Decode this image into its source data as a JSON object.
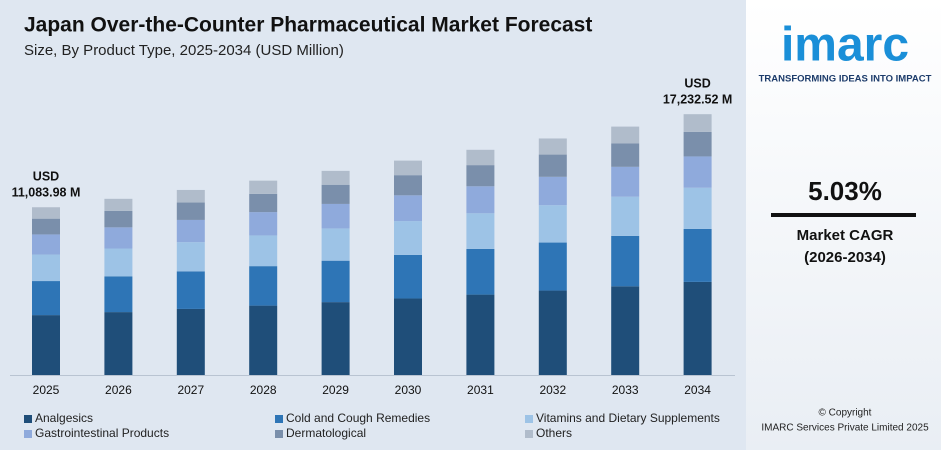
{
  "chart_data": {
    "type": "stacked_bar",
    "title": "Japan Over-the-Counter Pharmaceutical Market Forecast",
    "subtitle": "Size, By Product Type, 2025-2034 (USD Million)",
    "categories": [
      "2025",
      "2026",
      "2027",
      "2028",
      "2029",
      "2030",
      "2031",
      "2032",
      "2033",
      "2034"
    ],
    "series": [
      {
        "name": "Analgesics",
        "color": "#1f4e79",
        "values": [
          3957,
          4156,
          4365,
          4585,
          4815,
          5057,
          5312,
          5579,
          5859,
          6152
        ]
      },
      {
        "name": "Cold and Cough Remedies",
        "color": "#2e75b6",
        "values": [
          2250,
          2363,
          2482,
          2607,
          2738,
          2876,
          3020,
          3172,
          3332,
          3498
        ]
      },
      {
        "name": "Vitamins and Dietary Supplements",
        "color": "#9dc3e6",
        "values": [
          1751,
          1839,
          1932,
          2029,
          2131,
          2238,
          2351,
          2469,
          2593,
          2723
        ]
      },
      {
        "name": "Gastrointestinal Products",
        "color": "#8faadc",
        "values": [
          1330,
          1397,
          1467,
          1541,
          1619,
          1700,
          1785,
          1875,
          1970,
          2068
        ]
      },
      {
        "name": "Dermatological",
        "color": "#7a8fab",
        "values": [
          1042,
          1094,
          1149,
          1207,
          1268,
          1332,
          1399,
          1469,
          1543,
          1620
        ]
      },
      {
        "name": "Others",
        "color": "#b0bccb",
        "values": [
          754,
          792,
          831,
          873,
          917,
          963,
          1012,
          1063,
          1116,
          1172
        ]
      }
    ],
    "ylim": [
      0,
      18500
    ],
    "annotations": [
      {
        "category": "2025",
        "prefix": "USD",
        "value": 11083.98,
        "label": "11,083.98 M"
      },
      {
        "category": "2034",
        "prefix": "USD",
        "value": 17232.52,
        "label": "17,232.52 M"
      }
    ]
  },
  "sidebar": {
    "logo": "imarc",
    "tagline": "TRANSFORMING IDEAS INTO IMPACT",
    "cagr": "5.03%",
    "cagr_label": "Market CAGR",
    "cagr_period": "(2026-2034)",
    "copyright": "© Copyright",
    "company": "IMARC Services Private Limited 2025"
  }
}
